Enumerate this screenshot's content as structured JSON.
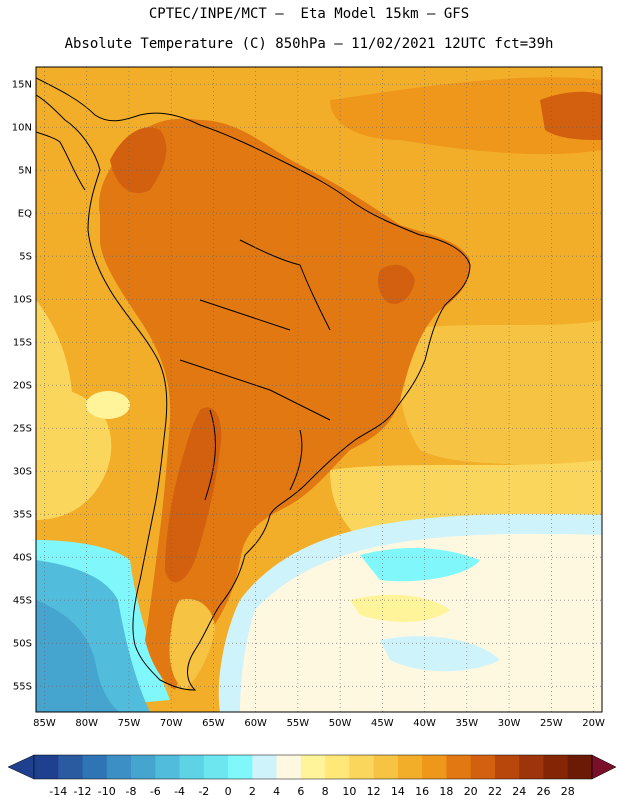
{
  "header": {
    "line1": "CPTEC/INPE/MCT –  Eta Model 15km – GFS",
    "line2": "Absolute Temperature (C) 850hPa – 11/02/2021 12UTC fct=39h"
  },
  "map": {
    "lon_range": [
      -86,
      -19
    ],
    "lat_range": [
      -58,
      17
    ],
    "lat_ticks": [
      "15N",
      "10N",
      "5N",
      "EQ",
      "5S",
      "10S",
      "15S",
      "20S",
      "25S",
      "30S",
      "35S",
      "40S",
      "45S",
      "50S",
      "55S"
    ],
    "lat_values": [
      15,
      10,
      5,
      0,
      -5,
      -10,
      -15,
      -20,
      -25,
      -30,
      -35,
      -40,
      -45,
      -50,
      -55
    ],
    "lon_ticks": [
      "85W",
      "80W",
      "75W",
      "70W",
      "65W",
      "60W",
      "55W",
      "50W",
      "45W",
      "40W",
      "35W",
      "30W",
      "25W",
      "20W"
    ],
    "lon_values": [
      -85,
      -80,
      -75,
      -70,
      -65,
      -60,
      -55,
      -50,
      -45,
      -40,
      -35,
      -30,
      -25,
      -20
    ]
  },
  "colorbar": {
    "labels": [
      "-14",
      "-12",
      "-10",
      "-8",
      "-6",
      "-4",
      "-2",
      "0",
      "2",
      "4",
      "6",
      "8",
      "10",
      "12",
      "14",
      "16",
      "18",
      "20",
      "22",
      "24",
      "26",
      "28"
    ],
    "colors": [
      "#1f3f8f",
      "#2a5aa0",
      "#2f75b5",
      "#3c8fc4",
      "#46a5cf",
      "#52bcdc",
      "#5fd3e6",
      "#6ee6f0",
      "#7ff7fb",
      "#cff3fa",
      "#fff8e1",
      "#fff49a",
      "#ffe778",
      "#fbd65c",
      "#f6c343",
      "#f2ae28",
      "#ee971a",
      "#e27812",
      "#d2600f",
      "#b8470c",
      "#9e3409",
      "#842606",
      "#6a1a05"
    ]
  },
  "colors": {
    "warm": "#f0a020",
    "hot": "#d8741a",
    "cold": "#5fd3e6",
    "cream": "#fff8e1"
  }
}
